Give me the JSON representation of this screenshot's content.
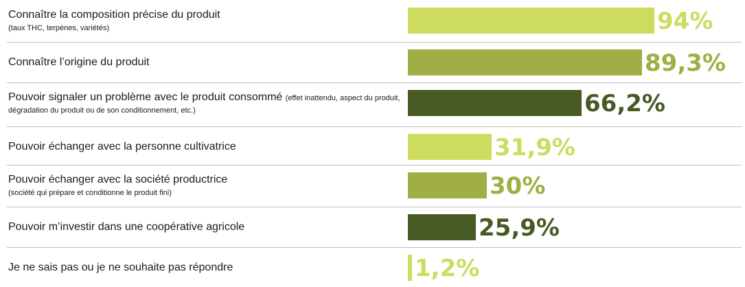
{
  "colors": {
    "light": "#cddc5f",
    "mid": "#a0ae45",
    "dark": "#475a23"
  },
  "chart_data": {
    "type": "bar",
    "orientation": "horizontal",
    "xlim": [
      0,
      100
    ],
    "categories": [
      "Connaître la composition précise du produit",
      "Connaître l’origine du produit",
      "Pouvoir signaler un problème avec le produit consommé",
      "Pouvoir échanger avec la personne cultivatrice",
      "Pouvoir échanger avec la société productrice",
      "Pouvoir m’investir dans une coopérative agricole",
      "Je ne sais pas ou je ne souhaite pas répondre"
    ],
    "values": [
      94,
      89.3,
      66.2,
      31.9,
      30,
      25.9,
      1.2
    ],
    "items": [
      {
        "label": "Connaître la composition précise du produit",
        "sub": "(taux THC, terpènes, variétés)",
        "sub_inline": false,
        "value": 94,
        "value_label": "94%",
        "color": "light"
      },
      {
        "label": "Connaître l’origine du produit",
        "sub": "",
        "sub_inline": false,
        "value": 89.3,
        "value_label": "89,3%",
        "color": "mid"
      },
      {
        "label": "Pouvoir signaler un problème avec le produit consommé",
        "sub": "(effet inattendu, aspect du produit, dégradation du produit ou de son conditionnement, etc.)",
        "sub_inline": true,
        "value": 66.2,
        "value_label": "66,2%",
        "color": "dark"
      },
      {
        "label": "Pouvoir échanger avec la personne cultivatrice",
        "sub": "",
        "sub_inline": false,
        "value": 31.9,
        "value_label": "31,9%",
        "color": "light"
      },
      {
        "label": "Pouvoir échanger avec la société productrice",
        "sub": "(société qui prépare et conditionne le produit fini)",
        "sub_inline": false,
        "value": 30,
        "value_label": "30%",
        "color": "mid"
      },
      {
        "label": "Pouvoir m’investir dans une coopérative agricole",
        "sub": "",
        "sub_inline": false,
        "value": 25.9,
        "value_label": "25,9%",
        "color": "dark"
      },
      {
        "label": "Je ne sais pas ou je ne souhaite pas répondre",
        "sub": "",
        "sub_inline": false,
        "value": 1.2,
        "value_label": "1,2%",
        "color": "light"
      }
    ]
  }
}
